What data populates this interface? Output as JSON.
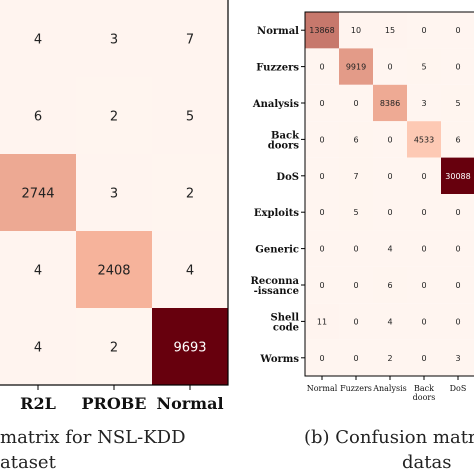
{
  "chart_data": [
    {
      "type": "heatmap",
      "x_tick_labels": [
        "R2L",
        "PROBE",
        "Normal"
      ],
      "values": [
        [
          4,
          3,
          7
        ],
        [
          6,
          2,
          5
        ],
        [
          2744,
          3,
          2
        ],
        [
          4,
          2408,
          4
        ],
        [
          4,
          2,
          9693
        ]
      ],
      "caption": "matrix for NSL-KDD",
      "caption_line2": "ataset"
    },
    {
      "type": "heatmap",
      "y_tick_labels": [
        "Normal",
        "Fuzzers",
        "Analysis",
        "Back doors",
        "DoS",
        "Exploits",
        "Generic",
        "Reconna -issance",
        "Shell code",
        "Worms"
      ],
      "x_tick_labels": [
        "Normal",
        "Fuzzers",
        "Analysis",
        "Back doors",
        "DoS"
      ],
      "values": [
        [
          13868,
          10,
          15,
          0,
          0
        ],
        [
          0,
          9919,
          0,
          5,
          0
        ],
        [
          0,
          0,
          8386,
          3,
          5
        ],
        [
          0,
          6,
          0,
          4533,
          6
        ],
        [
          0,
          7,
          0,
          0,
          30088
        ],
        [
          0,
          5,
          0,
          0,
          0
        ],
        [
          0,
          0,
          4,
          0,
          0
        ],
        [
          0,
          0,
          6,
          0,
          0
        ],
        [
          11,
          0,
          4,
          0,
          0
        ],
        [
          0,
          0,
          2,
          0,
          3
        ]
      ],
      "caption": "(b)  Confusion matri",
      "caption_line2": "datas"
    }
  ],
  "colors": {
    "low": "#fff5f0",
    "mid": "#fcbba1",
    "high": "#67000d",
    "text_dark": "#222222",
    "text_light": "#ffffff"
  }
}
